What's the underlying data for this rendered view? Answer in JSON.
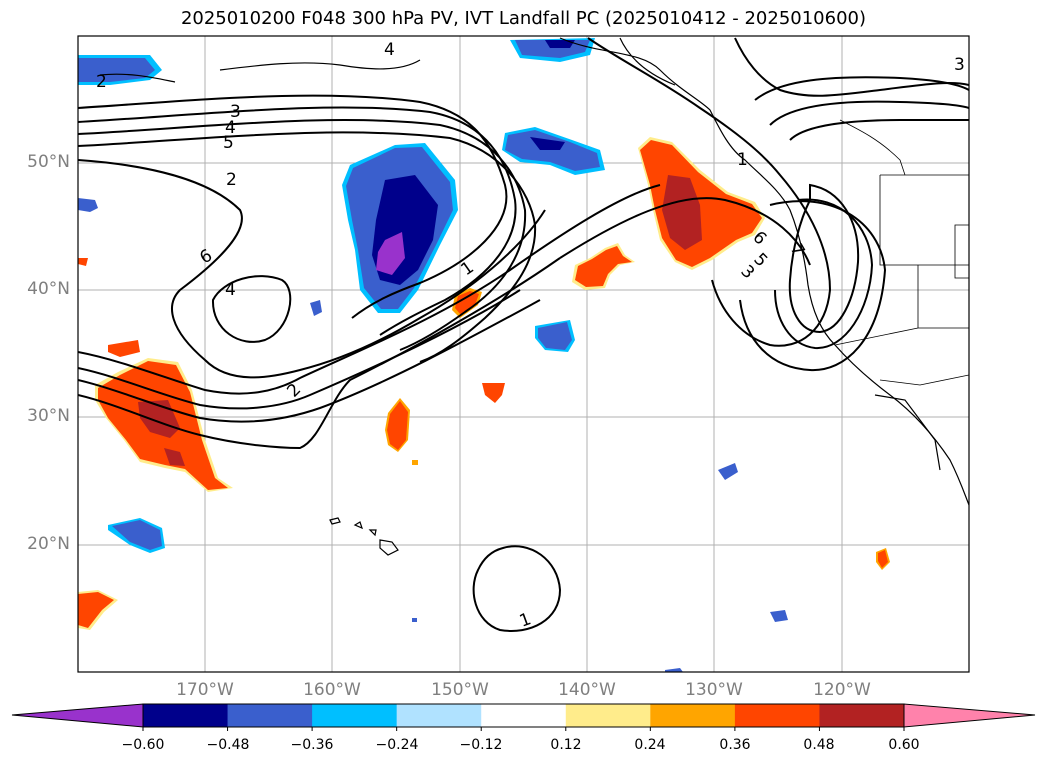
{
  "title": "2025010200 F048 300 hPa PV, IVT Landfall PC (2025010412 - 2025010600)",
  "map": {
    "lat_ticks": [
      "50°N",
      "40°N",
      "30°N",
      "20°N"
    ],
    "lon_ticks": [
      "170°W",
      "160°W",
      "150°W",
      "140°W",
      "130°W",
      "120°W"
    ],
    "contour_labels": [
      "1",
      "2",
      "3",
      "4",
      "5",
      "6",
      "4",
      "2",
      "1",
      "3",
      "4",
      "5",
      "6",
      "7",
      "1",
      "3",
      "2"
    ],
    "colors": {
      "neg_060": "#9932cc",
      "neg_048": "#00008b",
      "neg_036": "#3a5fcd",
      "neg_024": "#00bfff",
      "neg_012": "#b0e2ff",
      "neutral": "#ffffff",
      "pos_012": "#ffec8b",
      "pos_024": "#ffa500",
      "pos_036": "#ff4500",
      "pos_048": "#b22222",
      "pos_060": "#ff82ab"
    }
  },
  "colorbar": {
    "ticks": [
      "−0.60",
      "−0.48",
      "−0.36",
      "−0.24",
      "−0.12",
      "0.12",
      "0.24",
      "0.36",
      "0.48",
      "0.60"
    ],
    "colors": [
      "#9932cc",
      "#00008b",
      "#3a5fcd",
      "#00bfff",
      "#b0e2ff",
      "#ffffff",
      "#ffec8b",
      "#ffa500",
      "#ff4500",
      "#b22222",
      "#ff82ab"
    ]
  }
}
